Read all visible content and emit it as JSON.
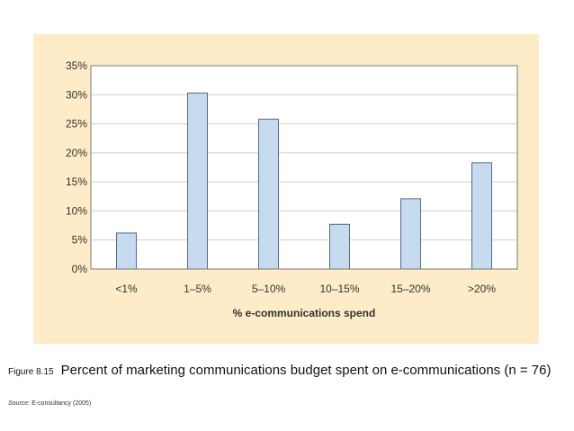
{
  "figure": {
    "number": "Figure 8.15",
    "title": "Percent of marketing communications budget spent on e-communications (n = 76)",
    "source_label": "Source:",
    "source_text": "E-consultancy (2005)"
  },
  "colors": {
    "panel_background": "#fdecc7",
    "plot_background": "#ffffff",
    "bar_fill": "#c6daf0",
    "bar_stroke": "#5a6a86",
    "grid": "#cfcfcf",
    "axis": "#777777"
  },
  "chart_data": {
    "type": "bar",
    "categories": [
      "<1%",
      "1–5%",
      "5–10%",
      "10–15%",
      "15–20%",
      ">20%"
    ],
    "values": [
      6.2,
      30.3,
      25.8,
      7.7,
      12.1,
      18.3
    ],
    "xlabel": "% e-communications spend",
    "ylabel": "",
    "ylim": [
      0,
      35
    ],
    "yticks": [
      "0%",
      "5%",
      "10%",
      "15%",
      "20%",
      "25%",
      "30%",
      "35%"
    ],
    "grid": true,
    "legend": "none"
  }
}
